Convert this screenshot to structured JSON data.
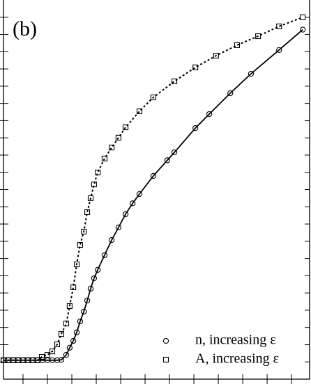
{
  "chart_data": {
    "type": "scatter",
    "panel_label": "(b)",
    "xlim": [
      0,
      12.54
    ],
    "ylim": [
      0,
      22
    ],
    "xticks": [
      0.8,
      1.8,
      2.8,
      3.8,
      4.8,
      5.8,
      6.8,
      7.8,
      8.8,
      9.8,
      10.8,
      11.8
    ],
    "yticks": [
      1,
      2,
      3,
      4,
      5,
      6,
      7,
      8,
      9,
      10,
      11,
      12,
      13,
      14,
      15,
      16,
      17,
      18,
      19,
      20,
      21
    ],
    "legend": "lower right",
    "series": [
      {
        "name": "n, increasing ε",
        "color": "#000000",
        "marker": "circle",
        "line": "solid",
        "x": [
          0,
          0.2,
          0.4,
          0.6,
          0.8,
          1.0,
          1.2,
          1.4,
          1.6,
          1.8,
          2.0,
          2.2,
          2.37,
          2.57,
          2.71,
          2.86,
          3.0,
          3.14,
          3.29,
          3.43,
          3.57,
          3.71,
          3.86,
          4.14,
          4.43,
          4.71,
          5.0,
          5.29,
          5.57,
          6.14,
          6.71,
          7.0,
          7.86,
          8.43,
          9.29,
          10.14,
          11.29,
          12.26
        ],
        "values": [
          1.1,
          1.1,
          1.1,
          1.1,
          1.1,
          1.1,
          1.1,
          1.1,
          1.1,
          1.1,
          1.1,
          1.1,
          1.12,
          1.41,
          1.82,
          2.22,
          2.71,
          3.35,
          3.92,
          4.56,
          5.25,
          5.85,
          6.34,
          7.19,
          8.07,
          8.8,
          9.57,
          10.2,
          10.74,
          11.79,
          12.7,
          13.16,
          14.57,
          15.38,
          16.59,
          17.72,
          19.1,
          20.28
        ]
      },
      {
        "name": "A, increasing ε",
        "color": "#000000",
        "marker": "square",
        "line": "dotted",
        "x": [
          0,
          0.2,
          0.4,
          0.6,
          0.8,
          1.0,
          1.2,
          1.4,
          1.57,
          1.8,
          2.0,
          2.2,
          2.37,
          2.57,
          2.71,
          2.86,
          3.0,
          3.14,
          3.29,
          3.43,
          3.57,
          3.71,
          3.86,
          4.14,
          4.43,
          4.71,
          5.0,
          5.57,
          6.14,
          7.0,
          7.86,
          8.71,
          9.57,
          10.43,
          11.29,
          12.26
        ],
        "values": [
          1.1,
          1.1,
          1.1,
          1.1,
          1.1,
          1.1,
          1.1,
          1.1,
          1.29,
          1.41,
          1.61,
          2.02,
          2.62,
          3.23,
          4.24,
          5.33,
          6.66,
          7.79,
          8.56,
          9.69,
          10.5,
          11.3,
          11.99,
          12.8,
          13.44,
          14.01,
          14.61,
          15.54,
          16.35,
          17.28,
          18.09,
          18.77,
          19.38,
          19.9,
          20.47,
          21.0
        ]
      }
    ]
  }
}
